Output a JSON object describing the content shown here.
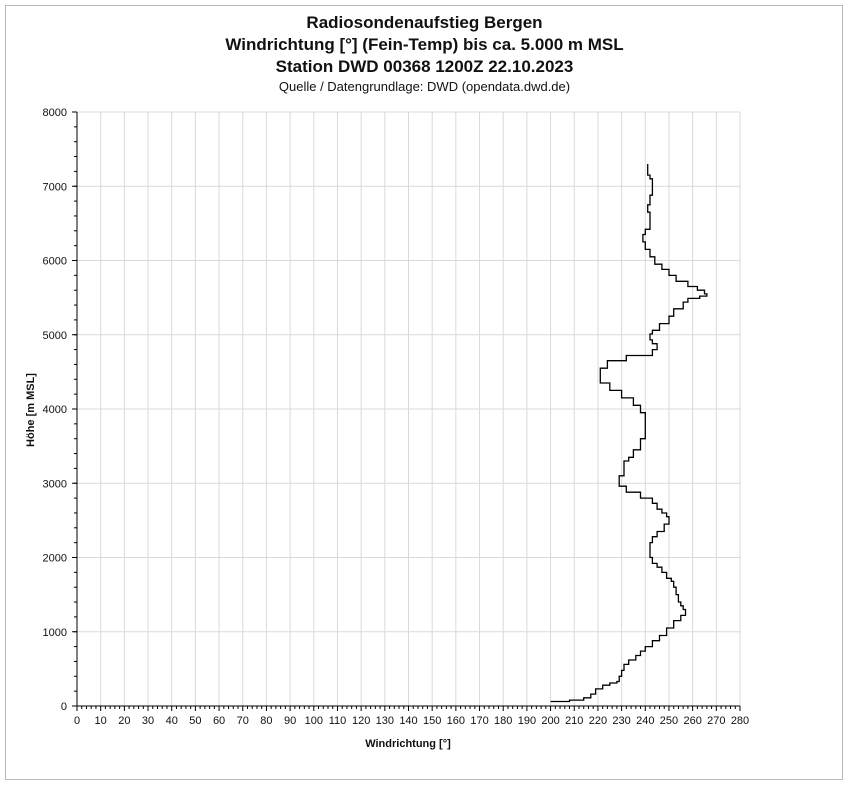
{
  "chart_data": {
    "type": "line",
    "title": "Radiosondenaufstieg Bergen",
    "subtitle": "Windrichtung [°] (Fein-Temp) bis ca. 5.000 m MSL",
    "subtitle2": "Station DWD 00368 1200Z 22.10.2023",
    "source": "Quelle / Datengrundlage: DWD (opendata.dwd.de)",
    "xlabel": "Windrichtung [°]",
    "ylabel": "Höhe [m MSL]",
    "xlim": [
      0,
      280
    ],
    "ylim": [
      0,
      8000
    ],
    "xticks": [
      "0",
      "10",
      "20",
      "30",
      "40",
      "50",
      "60",
      "70",
      "80",
      "90",
      "100",
      "110",
      "120",
      "130",
      "140",
      "150",
      "160",
      "170",
      "180",
      "190",
      "200",
      "210",
      "220",
      "230",
      "240",
      "250",
      "260",
      "270",
      "280"
    ],
    "yticks": [
      "0",
      "1000",
      "2000",
      "3000",
      "4000",
      "5000",
      "6000",
      "7000",
      "8000"
    ],
    "grid": true,
    "line_color": "#000000",
    "series": [
      {
        "x": [
          200,
          208,
          214,
          217,
          219,
          222,
          225,
          228,
          229,
          230,
          231,
          233,
          236,
          238,
          240,
          243,
          246,
          249,
          252,
          255,
          257,
          256,
          255,
          254,
          253,
          252,
          251,
          249,
          247,
          245,
          243,
          242,
          242,
          243,
          245,
          248,
          250,
          249,
          247,
          245,
          243,
          238,
          232,
          229,
          229,
          231,
          233,
          235,
          238,
          240,
          240,
          238,
          235,
          230,
          225,
          221,
          221,
          224,
          232,
          243,
          245,
          243,
          242,
          243,
          246,
          250,
          252,
          256,
          258,
          263,
          266,
          265,
          262,
          258,
          253,
          250,
          247,
          244,
          242,
          240,
          239,
          240,
          242,
          242,
          241,
          242,
          243,
          243,
          242,
          241,
          241
        ],
        "y": [
          60,
          80,
          110,
          160,
          230,
          280,
          310,
          330,
          400,
          480,
          560,
          620,
          680,
          740,
          800,
          880,
          950,
          1050,
          1150,
          1220,
          1300,
          1350,
          1400,
          1500,
          1600,
          1680,
          1720,
          1800,
          1870,
          1920,
          2000,
          2100,
          2200,
          2280,
          2350,
          2450,
          2550,
          2600,
          2650,
          2730,
          2800,
          2880,
          2960,
          3020,
          3100,
          3300,
          3350,
          3450,
          3600,
          3800,
          3950,
          4050,
          4150,
          4250,
          4350,
          4450,
          4550,
          4650,
          4720,
          4800,
          4880,
          4930,
          5010,
          5060,
          5150,
          5250,
          5350,
          5440,
          5490,
          5520,
          5550,
          5600,
          5650,
          5720,
          5800,
          5880,
          5950,
          6050,
          6150,
          6250,
          6350,
          6420,
          6550,
          6650,
          6750,
          6880,
          6950,
          7100,
          7150,
          7250,
          7300
        ]
      }
    ]
  }
}
